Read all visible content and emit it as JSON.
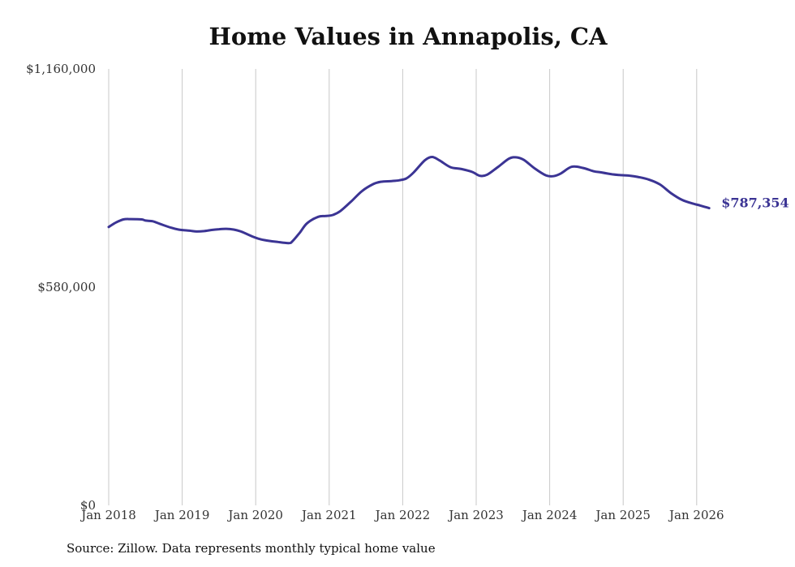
{
  "chart_data": {
    "type": "line",
    "title": "Home Values in Annapolis, CA",
    "xlabel": "",
    "ylabel": "",
    "ylim": [
      0,
      1160000
    ],
    "xlim": [
      2018,
      2026.2
    ],
    "y_ticks": [
      {
        "value": 0,
        "label": "$0"
      },
      {
        "value": 580000,
        "label": "$580,000"
      },
      {
        "value": 1160000,
        "label": "$1,160,000"
      }
    ],
    "x_ticks": [
      {
        "value": 2018,
        "label": "Jan 2018"
      },
      {
        "value": 2019,
        "label": "Jan 2019"
      },
      {
        "value": 2020,
        "label": "Jan 2020"
      },
      {
        "value": 2021,
        "label": "Jan 2021"
      },
      {
        "value": 2022,
        "label": "Jan 2022"
      },
      {
        "value": 2023,
        "label": "Jan 2023"
      },
      {
        "value": 2024,
        "label": "Jan 2024"
      },
      {
        "value": 2025,
        "label": "Jan 2025"
      },
      {
        "value": 2026,
        "label": "Jan 2026"
      }
    ],
    "grid": "vertical",
    "series": [
      {
        "name": "Typical home value",
        "color": "#3b3494",
        "x": [
          2018.0,
          2018.1,
          2018.2,
          2018.3,
          2018.45,
          2018.5,
          2018.6,
          2018.7,
          2018.85,
          2018.95,
          2019.1,
          2019.2,
          2019.3,
          2019.4,
          2019.5,
          2019.6,
          2019.7,
          2019.8,
          2019.95,
          2020.05,
          2020.15,
          2020.3,
          2020.45,
          2020.5,
          2020.6,
          2020.7,
          2020.85,
          2020.95,
          2021.05,
          2021.15,
          2021.3,
          2021.45,
          2021.6,
          2021.7,
          2021.85,
          2021.95,
          2022.05,
          2022.15,
          2022.3,
          2022.4,
          2022.5,
          2022.65,
          2022.8,
          2022.95,
          2023.05,
          2023.15,
          2023.3,
          2023.45,
          2023.55,
          2023.65,
          2023.8,
          2023.95,
          2024.05,
          2024.15,
          2024.3,
          2024.45,
          2024.6,
          2024.7,
          2024.85,
          2024.95,
          2025.1,
          2025.2,
          2025.35,
          2025.5,
          2025.65,
          2025.8,
          2025.95,
          2026.05,
          2026.17
        ],
        "values": [
          740000,
          752000,
          760000,
          761000,
          760000,
          757000,
          755000,
          748000,
          738000,
          733000,
          730000,
          728000,
          729000,
          732000,
          734000,
          735000,
          733000,
          728000,
          715000,
          708000,
          704000,
          700000,
          697000,
          702000,
          725000,
          750000,
          767000,
          769000,
          772000,
          782000,
          808000,
          836000,
          854000,
          860000,
          862000,
          864000,
          869000,
          885000,
          917000,
          926000,
          917000,
          899000,
          894000,
          886000,
          876000,
          879000,
          900000,
          922000,
          925000,
          918000,
          895000,
          877000,
          875000,
          882000,
          900000,
          897000,
          888000,
          885000,
          880000,
          878000,
          876000,
          873000,
          866000,
          853000,
          830000,
          812000,
          802000,
          797000,
          790000
        ]
      }
    ],
    "end_label": "$787,354",
    "source": "Source: Zillow. Data represents monthly typical home value"
  }
}
